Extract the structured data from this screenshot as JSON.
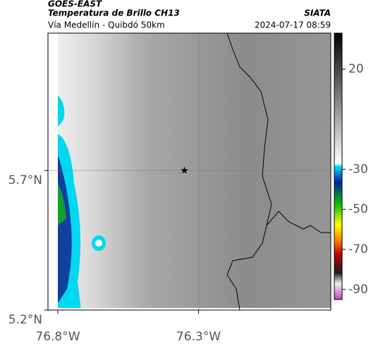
{
  "header": {
    "satellite": "GOES-EAST",
    "title": "Temperatura de Brillo CH13",
    "subtitle": "Vía Medellín - Quibdó 50km",
    "source": "SIATA",
    "timestamp": "2024-07-17 08:59"
  },
  "map": {
    "xlim": [
      -76.835,
      -75.83
    ],
    "ylim": [
      5.2,
      6.192
    ],
    "xticks": [
      {
        "value": -76.8,
        "label": "76.8°W"
      },
      {
        "value": -76.3,
        "label": "76.3°W"
      }
    ],
    "yticks": [
      {
        "value": 5.7,
        "label": "5.7°N"
      },
      {
        "value": 5.2,
        "label": "5.2°N"
      }
    ],
    "marker": {
      "lon": -76.35,
      "lat": 5.7
    }
  },
  "colorbar": {
    "lim": [
      -95,
      38
    ],
    "ticks": [
      20,
      -30,
      -50,
      -70,
      -90
    ]
  }
}
